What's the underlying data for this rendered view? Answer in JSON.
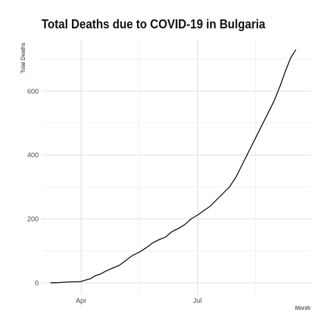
{
  "chart_data": {
    "type": "line",
    "title": "Total Deaths due to COVID-19 in Bulgaria",
    "xlabel": "Month",
    "ylabel": "Total Deaths",
    "x_ticks": [
      "Apr",
      "Jul"
    ],
    "y_ticks": [
      0,
      200,
      400,
      600
    ],
    "ylim": [
      -35,
      760
    ],
    "xlim": [
      "2020-03-01",
      "2020-09-28"
    ],
    "grid": true,
    "series": [
      {
        "color": "#000000",
        "x": [
          "2020-03-08",
          "2020-03-12",
          "2020-03-16",
          "2020-03-20",
          "2020-03-24",
          "2020-03-28",
          "2020-04-01",
          "2020-04-04",
          "2020-04-08",
          "2020-04-12",
          "2020-04-16",
          "2020-04-20",
          "2020-04-25",
          "2020-05-01",
          "2020-05-06",
          "2020-05-11",
          "2020-05-17",
          "2020-05-22",
          "2020-05-27",
          "2020-06-01",
          "2020-06-06",
          "2020-06-11",
          "2020-06-16",
          "2020-06-21",
          "2020-06-26",
          "2020-07-01",
          "2020-07-06",
          "2020-07-11",
          "2020-07-16",
          "2020-07-21",
          "2020-07-26",
          "2020-07-31",
          "2020-08-05",
          "2020-08-10",
          "2020-08-15",
          "2020-08-20",
          "2020-08-25",
          "2020-08-30",
          "2020-09-04",
          "2020-09-08",
          "2020-09-12",
          "2020-09-16"
        ],
        "values": [
          0,
          0,
          1,
          2,
          3,
          3,
          4,
          8,
          12,
          22,
          27,
          36,
          45,
          55,
          70,
          85,
          97,
          110,
          125,
          135,
          143,
          160,
          170,
          182,
          200,
          212,
          226,
          240,
          260,
          280,
          300,
          330,
          370,
          410,
          450,
          490,
          530,
          570,
          620,
          665,
          705,
          730
        ]
      }
    ]
  }
}
